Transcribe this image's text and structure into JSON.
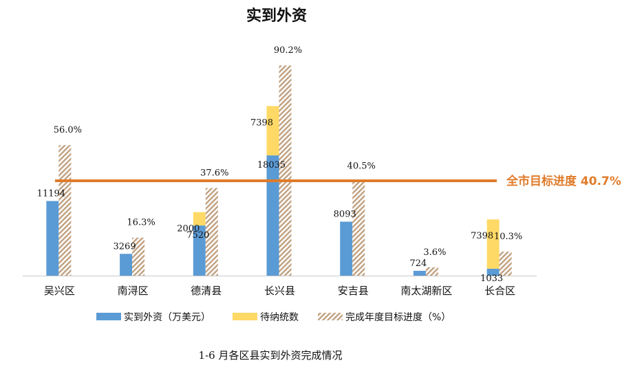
{
  "chart_data": {
    "type": "bar",
    "title": "实到外资",
    "caption": "1-6 月各区县实到外资完成情况",
    "categories": [
      "吴兴区",
      "南浔区",
      "德清县",
      "长兴县",
      "安吉县",
      "南太湖新区",
      "长合区"
    ],
    "series": [
      {
        "name": "实到外资（万美元）",
        "values": [
          11194,
          3269,
          7520,
          18035,
          8093,
          724,
          1033
        ],
        "labels": [
          "11194",
          "3269",
          "7520",
          "18035",
          "8093",
          "724",
          "1033"
        ],
        "color": "#5b9bd5"
      },
      {
        "name": "待纳统数",
        "values": [
          0,
          0,
          2000,
          7398,
          0,
          0,
          7398
        ],
        "labels": [
          "",
          "",
          "2000",
          "7398",
          "",
          "",
          "7398"
        ],
        "color": "#ffd966"
      },
      {
        "name": "完成年度目标进度（%）",
        "values": [
          56.0,
          16.3,
          37.6,
          90.2,
          40.5,
          3.6,
          10.3
        ],
        "labels": [
          "56.0%",
          "16.3%",
          "37.6%",
          "90.2%",
          "40.5%",
          "3.6%",
          "10.3%"
        ],
        "color": "#c0a080"
      }
    ],
    "reference_line": {
      "value": 40.7,
      "label": "全市目标进度 40.7%",
      "color": "#e07b2a"
    },
    "legend_position": "bottom",
    "grid": false
  }
}
